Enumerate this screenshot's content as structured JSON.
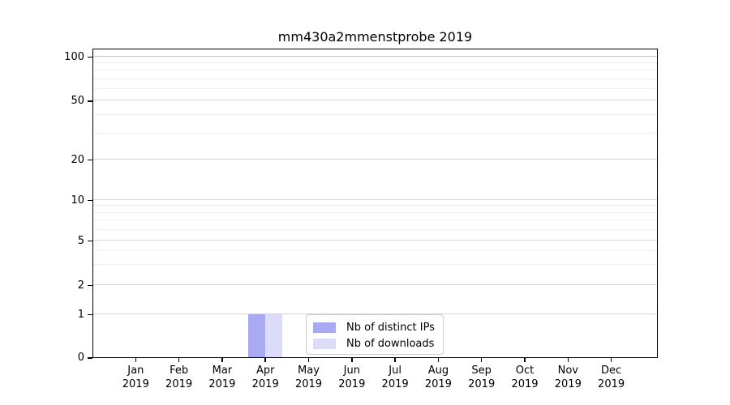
{
  "chart_data": {
    "type": "bar",
    "title": "mm430a2mmenstprobe 2019",
    "x_year": "2019",
    "categories": [
      "Jan",
      "Feb",
      "Mar",
      "Apr",
      "May",
      "Jun",
      "Jul",
      "Aug",
      "Sep",
      "Oct",
      "Nov",
      "Dec"
    ],
    "series": [
      {
        "name": "Nb of distinct IPs",
        "color": "#aaaaf2",
        "values": [
          0,
          0,
          0,
          1,
          0,
          0,
          0,
          0,
          0,
          0,
          0,
          0
        ]
      },
      {
        "name": "Nb of downloads",
        "color": "#dcdcf8",
        "values": [
          0,
          0,
          0,
          1,
          0,
          0,
          0,
          0,
          0,
          0,
          0,
          0
        ]
      }
    ],
    "yscale": "symlog",
    "ylim": [
      0,
      117
    ],
    "yticks": [
      0,
      1,
      2,
      5,
      10,
      20,
      50,
      100
    ],
    "minor_yticks": [
      3,
      4,
      6,
      7,
      8,
      9,
      30,
      40,
      60,
      70,
      80,
      90
    ],
    "grid": "horizontal-only",
    "legend_position": "lower-center",
    "colors": {
      "axis": "#000000",
      "major_grid": "#d6d6d6",
      "top_grid": "#c6c6c6",
      "minor_grid": "#ededed",
      "legend_border": "#cccccc",
      "background": "#ffffff",
      "text": "#000000"
    }
  }
}
